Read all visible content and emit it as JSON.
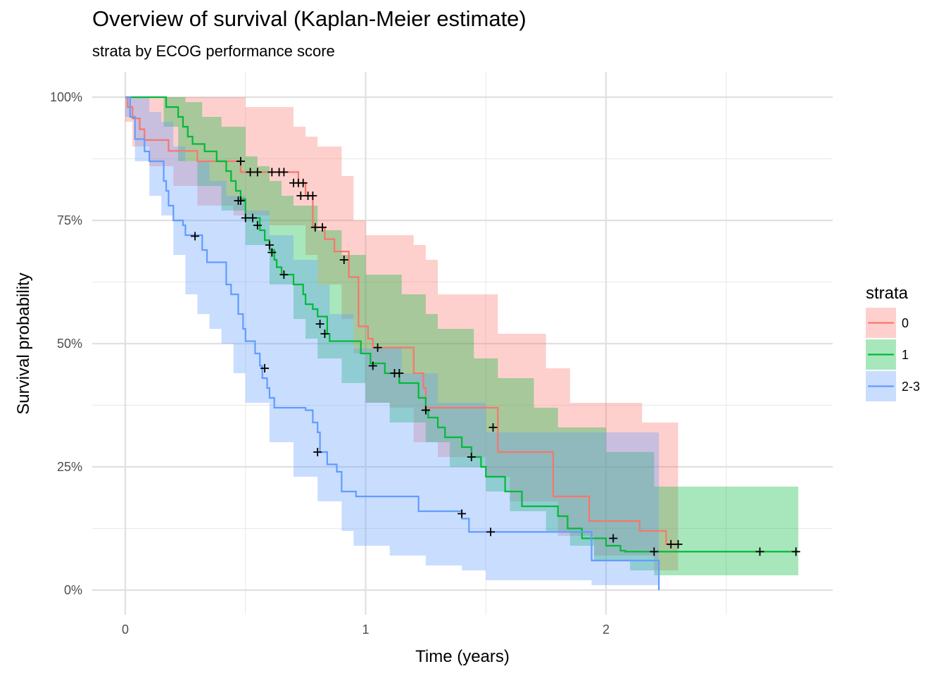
{
  "chart_data": {
    "type": "line",
    "title": "Overview of survival (Kaplan-Meier estimate)",
    "subtitle": "strata by ECOG performance score",
    "xlabel": "Time (years)",
    "ylabel": "Survival probability",
    "xlim": [
      -0.05,
      2.95
    ],
    "ylim": [
      -0.05,
      1.05
    ],
    "x_ticks": [
      0,
      1,
      2
    ],
    "x_tick_labels": [
      "0",
      "1",
      "2"
    ],
    "x_minor_ticks": [
      0.5,
      1.5,
      2.5
    ],
    "y_ticks": [
      0,
      0.25,
      0.5,
      0.75,
      1
    ],
    "y_tick_labels": [
      "0%",
      "25%",
      "50%",
      "75%",
      "100%"
    ],
    "y_minor_ticks": [
      0.125,
      0.375,
      0.625,
      0.875
    ],
    "grid": true,
    "legend": {
      "title": "strata",
      "position": "right"
    },
    "series": [
      {
        "name": "0",
        "color": "#f8766d",
        "steps": [
          [
            0,
            1
          ],
          [
            0.01,
            0.98
          ],
          [
            0.03,
            0.957
          ],
          [
            0.06,
            0.935
          ],
          [
            0.08,
            0.913
          ],
          [
            0.13,
            0.913
          ],
          [
            0.18,
            0.891
          ],
          [
            0.25,
            0.891
          ],
          [
            0.3,
            0.87
          ],
          [
            0.4,
            0.87
          ],
          [
            0.48,
            0.848
          ],
          [
            0.6,
            0.848
          ],
          [
            0.72,
            0.826
          ],
          [
            0.75,
            0.8
          ],
          [
            0.78,
            0.772
          ],
          [
            0.78,
            0.736
          ],
          [
            0.83,
            0.712
          ],
          [
            0.87,
            0.687
          ],
          [
            0.93,
            0.66
          ],
          [
            0.93,
            0.635
          ],
          [
            0.97,
            0.58
          ],
          [
            0.97,
            0.535
          ],
          [
            1.0,
            0.535
          ],
          [
            1.01,
            0.51
          ],
          [
            1.03,
            0.492
          ],
          [
            1.2,
            0.492
          ],
          [
            1.2,
            0.44
          ],
          [
            1.24,
            0.41
          ],
          [
            1.25,
            0.37
          ],
          [
            1.53,
            0.37
          ],
          [
            1.55,
            0.28
          ],
          [
            1.76,
            0.28
          ],
          [
            1.78,
            0.19
          ],
          [
            1.93,
            0.19
          ],
          [
            1.93,
            0.14
          ],
          [
            2.14,
            0.14
          ],
          [
            2.14,
            0.12
          ],
          [
            2.25,
            0.12
          ],
          [
            2.25,
            0.093
          ],
          [
            2.3,
            0.093
          ]
        ],
        "ci_lower": [
          [
            0,
            0.95
          ],
          [
            0.03,
            0.9
          ],
          [
            0.1,
            0.86
          ],
          [
            0.2,
            0.82
          ],
          [
            0.3,
            0.78
          ],
          [
            0.45,
            0.76
          ],
          [
            0.6,
            0.74
          ],
          [
            0.75,
            0.68
          ],
          [
            0.8,
            0.62
          ],
          [
            0.9,
            0.55
          ],
          [
            0.95,
            0.48
          ],
          [
            1.0,
            0.38
          ],
          [
            1.1,
            0.37
          ],
          [
            1.2,
            0.3
          ],
          [
            1.3,
            0.27
          ],
          [
            1.5,
            0.23
          ],
          [
            1.6,
            0.18
          ],
          [
            1.8,
            0.11
          ],
          [
            1.95,
            0.07
          ],
          [
            2.2,
            0.04
          ],
          [
            2.3,
            0.03
          ]
        ],
        "ci_upper": [
          [
            0,
            1
          ],
          [
            0.4,
            1
          ],
          [
            0.5,
            0.98
          ],
          [
            0.7,
            0.94
          ],
          [
            0.75,
            0.92
          ],
          [
            0.8,
            0.9
          ],
          [
            0.9,
            0.84
          ],
          [
            0.95,
            0.75
          ],
          [
            1.0,
            0.72
          ],
          [
            1.2,
            0.7
          ],
          [
            1.25,
            0.67
          ],
          [
            1.3,
            0.6
          ],
          [
            1.55,
            0.52
          ],
          [
            1.75,
            0.45
          ],
          [
            1.85,
            0.38
          ],
          [
            2.0,
            0.38
          ],
          [
            2.15,
            0.34
          ],
          [
            2.3,
            0.34
          ]
        ],
        "censored": [
          [
            0.48,
            0.87
          ],
          [
            0.52,
            0.848
          ],
          [
            0.55,
            0.848
          ],
          [
            0.61,
            0.848
          ],
          [
            0.64,
            0.848
          ],
          [
            0.66,
            0.848
          ],
          [
            0.7,
            0.826
          ],
          [
            0.72,
            0.826
          ],
          [
            0.74,
            0.826
          ],
          [
            0.73,
            0.8
          ],
          [
            0.76,
            0.8
          ],
          [
            0.78,
            0.8
          ],
          [
            0.79,
            0.736
          ],
          [
            0.82,
            0.736
          ],
          [
            0.91,
            0.67
          ],
          [
            1.05,
            0.492
          ],
          [
            1.25,
            0.365
          ],
          [
            1.53,
            0.33
          ],
          [
            2.27,
            0.093
          ],
          [
            2.3,
            0.093
          ]
        ]
      },
      {
        "name": "1",
        "color": "#00ba38",
        "steps": [
          [
            0,
            1
          ],
          [
            0.16,
            1
          ],
          [
            0.17,
            0.98
          ],
          [
            0.22,
            0.96
          ],
          [
            0.24,
            0.94
          ],
          [
            0.26,
            0.92
          ],
          [
            0.28,
            0.905
          ],
          [
            0.33,
            0.89
          ],
          [
            0.38,
            0.87
          ],
          [
            0.42,
            0.85
          ],
          [
            0.44,
            0.83
          ],
          [
            0.46,
            0.81
          ],
          [
            0.48,
            0.793
          ],
          [
            0.5,
            0.755
          ],
          [
            0.56,
            0.73
          ],
          [
            0.58,
            0.71
          ],
          [
            0.6,
            0.69
          ],
          [
            0.62,
            0.67
          ],
          [
            0.63,
            0.655
          ],
          [
            0.65,
            0.64
          ],
          [
            0.7,
            0.62
          ],
          [
            0.74,
            0.6
          ],
          [
            0.75,
            0.58
          ],
          [
            0.78,
            0.57
          ],
          [
            0.8,
            0.555
          ],
          [
            0.84,
            0.52
          ],
          [
            0.85,
            0.505
          ],
          [
            0.95,
            0.505
          ],
          [
            0.98,
            0.48
          ],
          [
            1.02,
            0.46
          ],
          [
            1.08,
            0.44
          ],
          [
            1.14,
            0.42
          ],
          [
            1.22,
            0.39
          ],
          [
            1.25,
            0.365
          ],
          [
            1.26,
            0.35
          ],
          [
            1.3,
            0.33
          ],
          [
            1.33,
            0.31
          ],
          [
            1.4,
            0.29
          ],
          [
            1.44,
            0.27
          ],
          [
            1.48,
            0.25
          ],
          [
            1.5,
            0.23
          ],
          [
            1.58,
            0.2
          ],
          [
            1.65,
            0.17
          ],
          [
            1.8,
            0.15
          ],
          [
            1.84,
            0.125
          ],
          [
            1.9,
            0.105
          ],
          [
            2.0,
            0.09
          ],
          [
            2.06,
            0.08
          ],
          [
            2.08,
            0.078
          ],
          [
            2.8,
            0.078
          ]
        ],
        "ci_lower": [
          [
            0,
            1
          ],
          [
            0.16,
            0.94
          ],
          [
            0.22,
            0.87
          ],
          [
            0.3,
            0.82
          ],
          [
            0.4,
            0.77
          ],
          [
            0.5,
            0.7
          ],
          [
            0.6,
            0.62
          ],
          [
            0.7,
            0.55
          ],
          [
            0.75,
            0.51
          ],
          [
            0.8,
            0.47
          ],
          [
            0.9,
            0.42
          ],
          [
            1.0,
            0.38
          ],
          [
            1.1,
            0.34
          ],
          [
            1.25,
            0.3
          ],
          [
            1.35,
            0.25
          ],
          [
            1.5,
            0.2
          ],
          [
            1.6,
            0.16
          ],
          [
            1.75,
            0.12
          ],
          [
            1.85,
            0.09
          ],
          [
            1.95,
            0.06
          ],
          [
            2.1,
            0.04
          ],
          [
            2.2,
            0.03
          ],
          [
            2.8,
            0.03
          ]
        ],
        "ci_upper": [
          [
            0,
            1
          ],
          [
            0.16,
            1
          ],
          [
            0.25,
            0.99
          ],
          [
            0.32,
            0.96
          ],
          [
            0.4,
            0.94
          ],
          [
            0.5,
            0.88
          ],
          [
            0.55,
            0.86
          ],
          [
            0.6,
            0.83
          ],
          [
            0.65,
            0.8
          ],
          [
            0.7,
            0.78
          ],
          [
            0.8,
            0.73
          ],
          [
            0.9,
            0.68
          ],
          [
            1.0,
            0.64
          ],
          [
            1.15,
            0.6
          ],
          [
            1.25,
            0.56
          ],
          [
            1.3,
            0.53
          ],
          [
            1.45,
            0.47
          ],
          [
            1.55,
            0.43
          ],
          [
            1.7,
            0.37
          ],
          [
            1.8,
            0.33
          ],
          [
            2.0,
            0.28
          ],
          [
            2.2,
            0.21
          ],
          [
            2.8,
            0.21
          ]
        ],
        "censored": [
          [
            0.47,
            0.79
          ],
          [
            0.48,
            0.79
          ],
          [
            0.5,
            0.755
          ],
          [
            0.53,
            0.755
          ],
          [
            0.55,
            0.74
          ],
          [
            0.6,
            0.7
          ],
          [
            0.61,
            0.685
          ],
          [
            0.66,
            0.64
          ],
          [
            0.81,
            0.54
          ],
          [
            0.83,
            0.52
          ],
          [
            1.03,
            0.455
          ],
          [
            1.12,
            0.44
          ],
          [
            1.14,
            0.44
          ],
          [
            1.25,
            0.365
          ],
          [
            1.44,
            0.27
          ],
          [
            2.03,
            0.105
          ],
          [
            2.2,
            0.078
          ],
          [
            2.64,
            0.078
          ],
          [
            2.79,
            0.078
          ]
        ]
      },
      {
        "name": "2-3",
        "color": "#619cff",
        "steps": [
          [
            0,
            1
          ],
          [
            0.02,
            0.96
          ],
          [
            0.04,
            0.915
          ],
          [
            0.08,
            0.89
          ],
          [
            0.1,
            0.87
          ],
          [
            0.15,
            0.87
          ],
          [
            0.16,
            0.83
          ],
          [
            0.17,
            0.81
          ],
          [
            0.18,
            0.78
          ],
          [
            0.2,
            0.75
          ],
          [
            0.24,
            0.74
          ],
          [
            0.25,
            0.72
          ],
          [
            0.32,
            0.69
          ],
          [
            0.34,
            0.665
          ],
          [
            0.4,
            0.665
          ],
          [
            0.42,
            0.62
          ],
          [
            0.44,
            0.6
          ],
          [
            0.47,
            0.56
          ],
          [
            0.49,
            0.53
          ],
          [
            0.5,
            0.505
          ],
          [
            0.54,
            0.48
          ],
          [
            0.56,
            0.455
          ],
          [
            0.57,
            0.43
          ],
          [
            0.59,
            0.41
          ],
          [
            0.6,
            0.39
          ],
          [
            0.62,
            0.37
          ],
          [
            0.75,
            0.365
          ],
          [
            0.78,
            0.34
          ],
          [
            0.8,
            0.32
          ],
          [
            0.81,
            0.28
          ],
          [
            0.84,
            0.255
          ],
          [
            0.88,
            0.24
          ],
          [
            0.9,
            0.2
          ],
          [
            0.96,
            0.19
          ],
          [
            1.22,
            0.16
          ],
          [
            1.4,
            0.145
          ],
          [
            1.43,
            0.118
          ],
          [
            1.93,
            0.118
          ],
          [
            1.94,
            0.06
          ],
          [
            2.2,
            0.06
          ],
          [
            2.22,
            0.0
          ]
        ],
        "ci_lower": [
          [
            0,
            0.96
          ],
          [
            0.04,
            0.87
          ],
          [
            0.1,
            0.8
          ],
          [
            0.15,
            0.76
          ],
          [
            0.2,
            0.68
          ],
          [
            0.25,
            0.6
          ],
          [
            0.3,
            0.56
          ],
          [
            0.35,
            0.53
          ],
          [
            0.4,
            0.5
          ],
          [
            0.45,
            0.44
          ],
          [
            0.5,
            0.38
          ],
          [
            0.6,
            0.3
          ],
          [
            0.7,
            0.23
          ],
          [
            0.8,
            0.18
          ],
          [
            0.9,
            0.12
          ],
          [
            0.95,
            0.09
          ],
          [
            1.1,
            0.07
          ],
          [
            1.25,
            0.05
          ],
          [
            1.4,
            0.04
          ],
          [
            1.5,
            0.02
          ],
          [
            1.94,
            0.01
          ],
          [
            2.22,
            0.0
          ]
        ],
        "ci_upper": [
          [
            0,
            1
          ],
          [
            0.04,
            1
          ],
          [
            0.1,
            0.97
          ],
          [
            0.15,
            0.95
          ],
          [
            0.2,
            0.9
          ],
          [
            0.25,
            0.87
          ],
          [
            0.35,
            0.83
          ],
          [
            0.42,
            0.8
          ],
          [
            0.5,
            0.77
          ],
          [
            0.6,
            0.72
          ],
          [
            0.7,
            0.67
          ],
          [
            0.8,
            0.62
          ],
          [
            0.85,
            0.56
          ],
          [
            0.95,
            0.49
          ],
          [
            1.15,
            0.44
          ],
          [
            1.3,
            0.38
          ],
          [
            1.5,
            0.32
          ],
          [
            1.93,
            0.32
          ],
          [
            1.94,
            0.32
          ],
          [
            2.22,
            0.32
          ]
        ],
        "censored": [
          [
            0.29,
            0.718
          ],
          [
            0.58,
            0.45
          ],
          [
            0.8,
            0.28
          ],
          [
            1.4,
            0.155
          ],
          [
            1.52,
            0.118
          ]
        ]
      }
    ]
  }
}
